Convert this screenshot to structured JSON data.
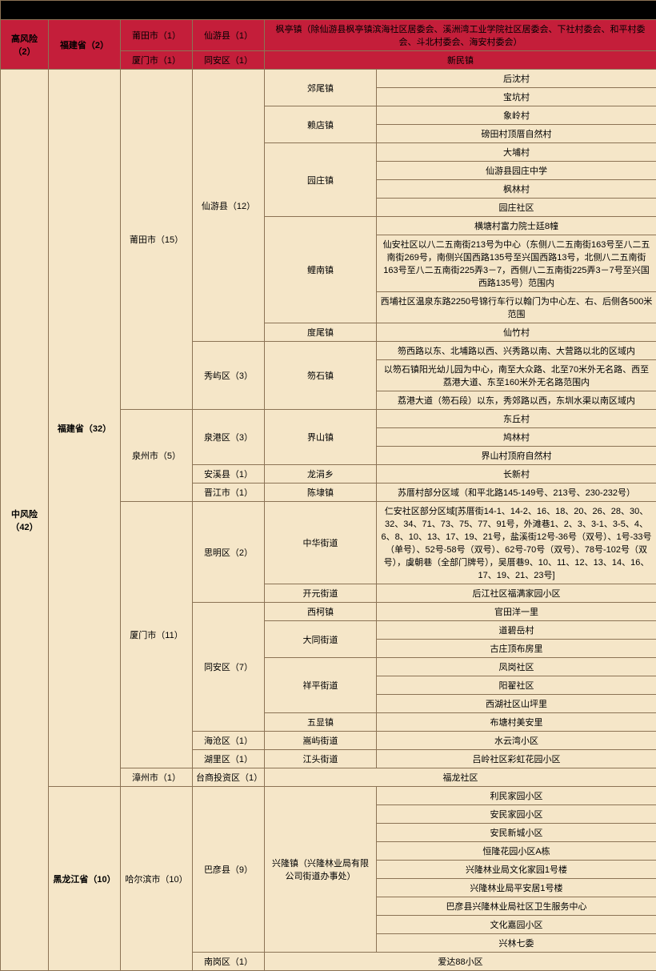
{
  "title": "",
  "highRisk": {
    "label": "高风险（2）",
    "province": "福建省（2）",
    "rows": [
      {
        "city": "莆田市（1）",
        "county": "仙游县（1）",
        "detail": "枫亭镇（除仙游县枫亭镇滨海社区居委会、溪洲湾工业学院社区居委会、下社村委会、和平村委会、斗北村委会、海安村委会）"
      },
      {
        "city": "厦门市（1）",
        "county": "同安区（1）",
        "detail": "新民镇"
      }
    ]
  },
  "medRisk": {
    "label": "中风险（42）",
    "fujian": {
      "province": "福建省（32）",
      "putian": {
        "city": "莆田市（15）",
        "xianyou": {
          "county": "仙游县（12）",
          "jiawei": {
            "town": "郊尾镇",
            "v1": "后沈村",
            "v2": "宝坑村"
          },
          "laidian": {
            "town": "赖店镇",
            "v1": "象岭村",
            "v2": "磅田村顶厝自然村"
          },
          "yuanzhuang": {
            "town": "园庄镇",
            "v1": "大埔村",
            "v2": "仙游县园庄中学",
            "v3": "枫林村",
            "v4": "园庄社区"
          },
          "linan": {
            "town": "鲤南镇",
            "v1": "横塘村富力院士廷8幢",
            "v2": "仙安社区以八二五南街213号为中心（东侧八二五南街163号至八二五南街269号，南侧兴国西路135号至兴国西路13号，北侧八二五南街163号至八二五南街225弄3－7，西侧八二五南街225弄3－7号至兴国西路135号）范围内",
            "v3": "西埔社区温泉东路2250号锦行车行以翰门为中心左、右、后侧各500米范围"
          },
          "duwei": {
            "town": "度尾镇",
            "v1": "仙竹村"
          }
        },
        "xiuyu": {
          "county": "秀屿区（3）",
          "sushi": {
            "town": "笏石镇",
            "v1": "笏西路以东、北埔路以西、兴秀路以南、大营路以北的区域内",
            "v2": "以笏石镇阳光幼儿园为中心，南至大众路、北至70米外无名路、西至荔港大道、东至160米外无名路范围内",
            "v3": "荔港大道（笏石段）以东，秀郊路以西，东圳水渠以南区域内"
          }
        }
      },
      "quanzhou": {
        "city": "泉州市（5）",
        "quangang": {
          "county": "泉港区（3）",
          "town": "界山镇",
          "v1": "东丘村",
          "v2": "鸠林村",
          "v3": "界山村顶府自然村"
        },
        "anxi": {
          "county": "安溪县（1）",
          "town": "龙涓乡",
          "v1": "长新村"
        },
        "jinjiang": {
          "county": "晋江市（1）",
          "town": "陈埭镇",
          "v1": "苏厝村部分区域（和平北路145-149号、213号、230-232号）"
        }
      },
      "xiamen": {
        "city": "厦门市（11）",
        "siming": {
          "county": "思明区（2）",
          "zhonghua": {
            "town": "中华街道",
            "v1": "仁安社区部分区域[苏厝街14-1、14-2、16、18、20、26、28、30、32、34、71、73、75、77、91号，外滩巷1、2、3、3-1、3-5、4、6、8、10、13、17、19、21号，盐溪街12号-36号（双号）、1号-33号（单号）、52号-58号（双号）、62号-70号（双号）、78号-102号（双号），虞朝巷（全部门牌号），吴厝巷9、10、11、12、13、14、16、17、19、21、23号]"
          },
          "kaiyuan": {
            "town": "开元街道",
            "v1": "后江社区福满家园小区"
          }
        },
        "tongan": {
          "county": "同安区（7）",
          "xike": {
            "town": "西柯镇",
            "v1": "官田洋一里"
          },
          "datong": {
            "town": "大同街道",
            "v1": "道碧岳村",
            "v2": "古庄顶布房里"
          },
          "xiangping": {
            "town": "祥平街道",
            "v1": "凤岗社区",
            "v2": "阳翟社区",
            "v3": "西湖社区山坪里"
          },
          "wuxian": {
            "town": "五显镇",
            "v1": "布塘村美安里"
          }
        },
        "haicang": {
          "county": "海沧区（1）",
          "town": "嵩屿街道",
          "v1": "水云湾小区"
        },
        "huli": {
          "county": "湖里区（1）",
          "town": "江头街道",
          "v1": "吕岭社区彩虹花园小区"
        }
      },
      "zhangzhou": {
        "city": "漳州市（1）",
        "county": "台商投资区（1）",
        "v1": "福龙社区"
      }
    },
    "heilongjiang": {
      "province": "黑龙江省（10）",
      "harbin": {
        "city": "哈尔滨市（10）",
        "bayan": {
          "county": "巴彦县（9）",
          "xinglong": {
            "town": "兴隆镇（兴隆林业局有限公司街道办事处）",
            "v1": "利民家园小区",
            "v2": "安民家园小区",
            "v3": "安民新城小区",
            "v4": "恒隆花园小区A栋",
            "v5": "兴隆林业局文化家园1号楼",
            "v6": "兴隆林业局平安居1号楼",
            "v7": "巴彦县兴隆林业局社区卫生服务中心",
            "v8": "文化嘉园小区",
            "v9": "兴林七委"
          }
        },
        "nangang": {
          "county": "南岗区（1）",
          "v1": "爱达88小区"
        }
      }
    }
  }
}
